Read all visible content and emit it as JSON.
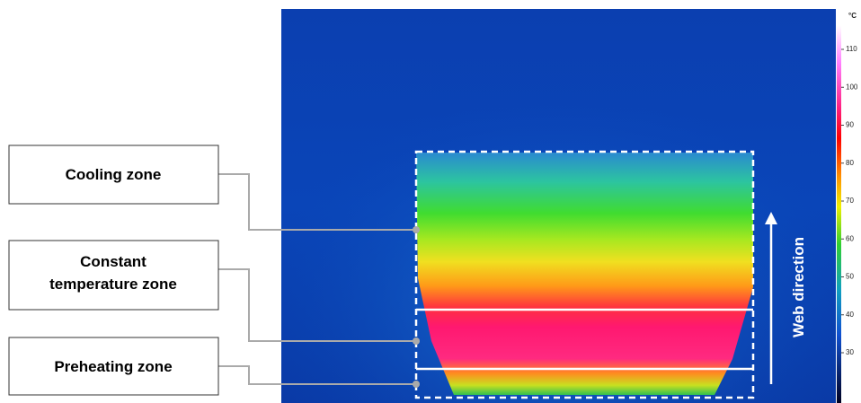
{
  "labels": {
    "cooling": "Cooling zone",
    "constant": [
      "Constant",
      "temperature zone"
    ],
    "preheating": "Preheating zone",
    "direction": "Web direction"
  },
  "colorbar": {
    "unit": "°C",
    "ticks": [
      110,
      100,
      90,
      80,
      70,
      60,
      50,
      40,
      30
    ]
  }
}
